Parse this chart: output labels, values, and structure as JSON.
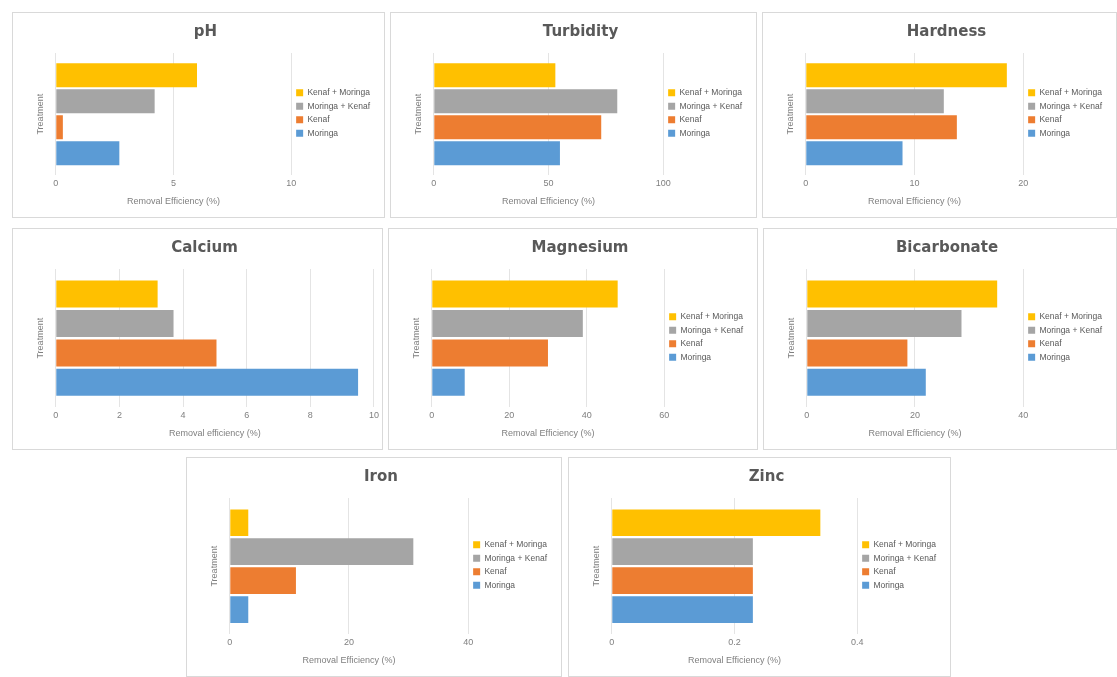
{
  "chart_data": [
    {
      "type": "bar",
      "orientation": "horizontal",
      "title": "pH",
      "xlabel": "Removal Efficiency (%)",
      "ylabel": "Treatment",
      "categories": [
        null
      ],
      "xlim": [
        0,
        10
      ],
      "xticks": [
        0,
        5,
        10
      ],
      "grid": "x",
      "legend": "right",
      "series": [
        {
          "name": "Kenaf + Moringa",
          "color": "#ffc000",
          "values": [
            6.0
          ]
        },
        {
          "name": "Moringa + Kenaf",
          "color": "#a5a5a5",
          "values": [
            4.2
          ]
        },
        {
          "name": "Kenaf",
          "color": "#ed7d31",
          "values": [
            0.3
          ]
        },
        {
          "name": "Moringa",
          "color": "#5b9bd5",
          "values": [
            2.7
          ]
        }
      ]
    },
    {
      "type": "bar",
      "orientation": "horizontal",
      "title": "Turbidity",
      "xlabel": "Removal Efficiency (%)",
      "ylabel": "Treatment",
      "categories": [
        null
      ],
      "xlim": [
        0,
        100
      ],
      "xticks": [
        0,
        50,
        100
      ],
      "grid": "x",
      "legend": "right",
      "series": [
        {
          "name": "Kenaf + Moringa",
          "color": "#ffc000",
          "values": [
            53
          ]
        },
        {
          "name": "Moringa + Kenaf",
          "color": "#a5a5a5",
          "values": [
            80
          ]
        },
        {
          "name": "Kenaf",
          "color": "#ed7d31",
          "values": [
            73
          ]
        },
        {
          "name": "Moringa",
          "color": "#5b9bd5",
          "values": [
            55
          ]
        }
      ]
    },
    {
      "type": "bar",
      "orientation": "horizontal",
      "title": "Hardness",
      "xlabel": "Removal Efficiency (%)",
      "ylabel": "Treatment",
      "categories": [
        null
      ],
      "xlim": [
        0,
        20
      ],
      "xticks": [
        0,
        10,
        20
      ],
      "grid": "x",
      "legend": "right",
      "series": [
        {
          "name": "Kenaf + Moringa",
          "color": "#ffc000",
          "values": [
            18.5
          ]
        },
        {
          "name": "Moringa + Kenaf",
          "color": "#a5a5a5",
          "values": [
            12.7
          ]
        },
        {
          "name": "Kenaf",
          "color": "#ed7d31",
          "values": [
            13.9
          ]
        },
        {
          "name": "Moringa",
          "color": "#5b9bd5",
          "values": [
            8.9
          ]
        }
      ]
    },
    {
      "type": "bar",
      "orientation": "horizontal",
      "title": "Calcium",
      "xlabel": "Removal efficiency (%)",
      "ylabel": "Treatment",
      "categories": [
        null
      ],
      "xlim": [
        0,
        10
      ],
      "xticks": [
        0,
        2,
        4,
        6,
        8,
        10
      ],
      "grid": "x",
      "legend": false,
      "series": [
        {
          "color": "#ffc000",
          "values": [
            3.2
          ]
        },
        {
          "color": "#a5a5a5",
          "values": [
            3.7
          ]
        },
        {
          "color": "#ed7d31",
          "values": [
            5.05
          ]
        },
        {
          "color": "#5b9bd5",
          "values": [
            9.5
          ]
        }
      ]
    },
    {
      "type": "bar",
      "orientation": "horizontal",
      "title": "Magnesium",
      "xlabel": "Removal Efficiency (%)",
      "ylabel": "Treatment",
      "categories": [
        null
      ],
      "xlim": [
        0,
        60
      ],
      "xticks": [
        0,
        20,
        40,
        60
      ],
      "grid": "x",
      "legend": "right",
      "series": [
        {
          "name": "Kenaf + Moringa",
          "color": "#ffc000",
          "values": [
            48
          ]
        },
        {
          "name": "Moringa + Kenaf",
          "color": "#a5a5a5",
          "values": [
            39
          ]
        },
        {
          "name": "Kenaf",
          "color": "#ed7d31",
          "values": [
            30
          ]
        },
        {
          "name": "Moringa",
          "color": "#5b9bd5",
          "values": [
            8.5
          ]
        }
      ]
    },
    {
      "type": "bar",
      "orientation": "horizontal",
      "title": "Bicarbonate",
      "xlabel": "Removal Efficiency (%)",
      "ylabel": "Treatment",
      "categories": [
        null
      ],
      "xlim": [
        0,
        40
      ],
      "xticks": [
        0,
        20,
        40
      ],
      "grid": "x",
      "legend": "right",
      "series": [
        {
          "name": "Kenaf + Moringa",
          "color": "#ffc000",
          "values": [
            35.2
          ]
        },
        {
          "name": "Moringa + Kenaf",
          "color": "#a5a5a5",
          "values": [
            28.6
          ]
        },
        {
          "name": "Kenaf",
          "color": "#ed7d31",
          "values": [
            18.6
          ]
        },
        {
          "name": "Moringa",
          "color": "#5b9bd5",
          "values": [
            22
          ]
        }
      ]
    },
    {
      "type": "bar",
      "orientation": "horizontal",
      "title": "Iron",
      "xlabel": "Removal Efficiency (%)",
      "ylabel": "Treatment",
      "categories": [
        null
      ],
      "xlim": [
        0,
        40
      ],
      "xticks": [
        0,
        20,
        40
      ],
      "grid": "x",
      "legend": "right",
      "series": [
        {
          "name": "Kenaf + Moringa",
          "color": "#ffc000",
          "values": [
            3.1
          ]
        },
        {
          "name": "Moringa + Kenaf",
          "color": "#a5a5a5",
          "values": [
            30.8
          ]
        },
        {
          "name": "Kenaf",
          "color": "#ed7d31",
          "values": [
            11.1
          ]
        },
        {
          "name": "Moringa",
          "color": "#5b9bd5",
          "values": [
            3.1
          ]
        }
      ]
    },
    {
      "type": "bar",
      "orientation": "horizontal",
      "title": "Zinc",
      "xlabel": "Removal Efficiency (%)",
      "ylabel": "Treatment",
      "categories": [
        null
      ],
      "xlim": [
        0,
        0.4
      ],
      "xticks": [
        0,
        0.2,
        0.4
      ],
      "grid": "x",
      "legend": "right",
      "series": [
        {
          "name": "Kenaf + Moringa",
          "color": "#ffc000",
          "values": [
            0.34
          ]
        },
        {
          "name": "Moringa + Kenaf",
          "color": "#a5a5a5",
          "values": [
            0.23
          ]
        },
        {
          "name": "Kenaf",
          "color": "#ed7d31",
          "values": [
            0.23
          ]
        },
        {
          "name": "Moringa",
          "color": "#5b9bd5",
          "values": [
            0.23
          ]
        }
      ]
    }
  ]
}
